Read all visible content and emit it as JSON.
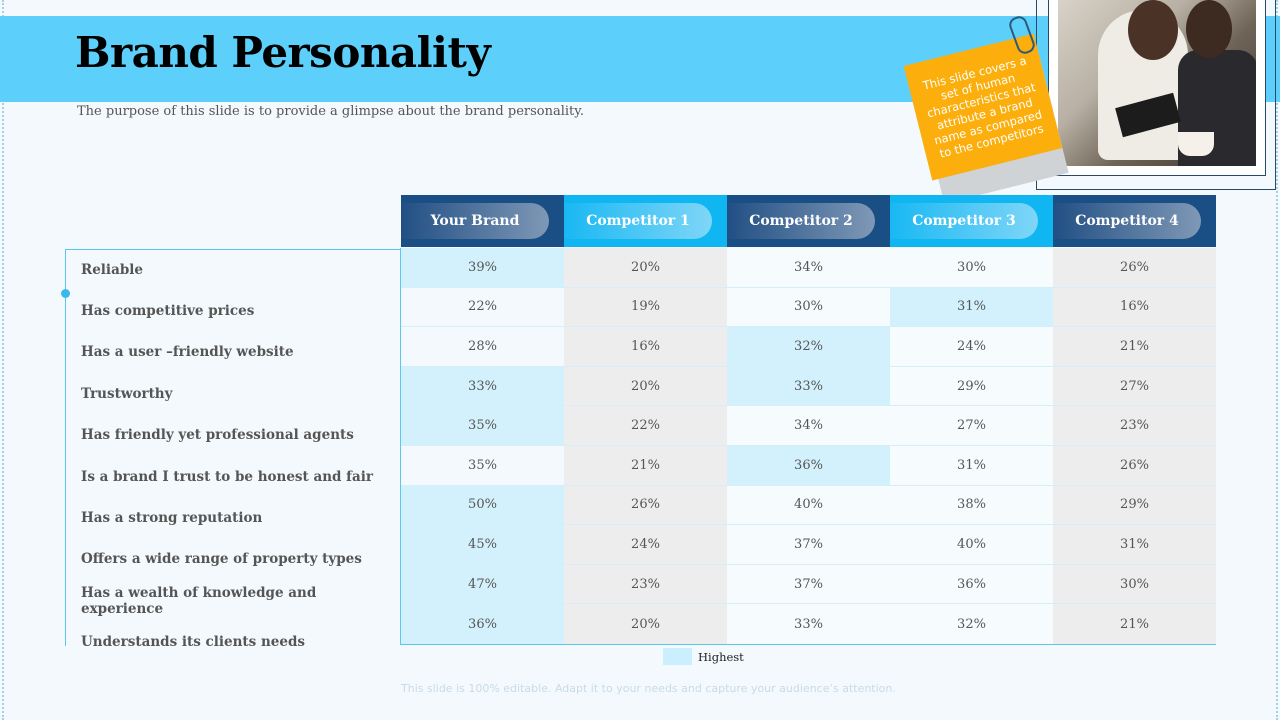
{
  "page": {
    "title": "Brand Personality",
    "subtitle": "The purpose of this slide is to provide a glimpse about the brand personality.",
    "note_text": "This slide covers a set of human characteristics that attribute a brand name as compared to the competitors",
    "legend_label": "Highest",
    "footer": "This slide is 100% editable. Adapt it to your needs and capture your audience’s attention."
  },
  "colors": {
    "band": "#5cd0fb",
    "header_dark": "#1a4f86",
    "header_light": "#10b6f2",
    "highlight": "#d3f1fc",
    "note": "#fcae0c"
  },
  "table": {
    "columns": [
      "Your Brand",
      "Competitor 1",
      "Competitor 2",
      "Competitor 3",
      "Competitor 4"
    ],
    "rows": [
      {
        "label": "Reliable",
        "values": [
          "39%",
          "20%",
          "34%",
          "30%",
          "26%"
        ],
        "highest": [
          0
        ]
      },
      {
        "label": "Has competitive prices",
        "values": [
          "22%",
          "19%",
          "30%",
          "31%",
          "16%"
        ],
        "highest": [
          3
        ]
      },
      {
        "label": "Has a user –friendly website",
        "values": [
          "28%",
          "16%",
          "32%",
          "24%",
          "21%"
        ],
        "highest": [
          2
        ]
      },
      {
        "label": "Trustworthy",
        "values": [
          "33%",
          "20%",
          "33%",
          "29%",
          "27%"
        ],
        "highest": [
          0,
          2
        ]
      },
      {
        "label": "Has friendly yet professional agents",
        "values": [
          "35%",
          "22%",
          "34%",
          "27%",
          "23%"
        ],
        "highest": [
          0
        ]
      },
      {
        "label": "Is a brand I trust to be honest and fair",
        "values": [
          "35%",
          "21%",
          "36%",
          "31%",
          "26%"
        ],
        "highest": [
          2
        ]
      },
      {
        "label": "Has a strong reputation",
        "values": [
          "50%",
          "26%",
          "40%",
          "38%",
          "29%"
        ],
        "highest": [
          0
        ]
      },
      {
        "label": "Offers a wide range of property types",
        "values": [
          "45%",
          "24%",
          "37%",
          "40%",
          "31%"
        ],
        "highest": [
          0
        ]
      },
      {
        "label": "Has a wealth of knowledge and experience",
        "values": [
          "47%",
          "23%",
          "37%",
          "36%",
          "30%"
        ],
        "highest": [
          0
        ]
      },
      {
        "label": "Understands its clients needs",
        "values": [
          "36%",
          "20%",
          "33%",
          "32%",
          "21%"
        ],
        "highest": [
          0
        ]
      }
    ]
  }
}
